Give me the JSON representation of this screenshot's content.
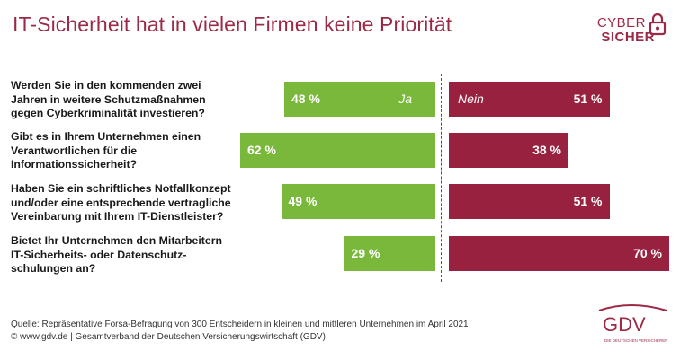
{
  "title": "IT-Sicherheit hat in vielen Firmen keine Priorität",
  "logo": {
    "line1": "CYBER",
    "line2": "SICHER",
    "icon": "lock-icon"
  },
  "colors": {
    "ja": "#79b83b",
    "nein": "#98213f",
    "title": "#9c2a47"
  },
  "chart_data": {
    "type": "bar",
    "orientation": "horizontal diverging",
    "categories": [
      "Werden Sie in den kommenden zwei Jahren in weitere Schutzmaßnahmen gegen Cyberkriminalität investieren?",
      "Gibt es in Ihrem Unternehmen einen Verantwortlichen für die Informationssicherheit?",
      "Haben Sie ein schriftliches Notfallkonzept und/oder eine entsprechende vertragliche Vereinbarung mit Ihrem IT-Dienstleister?",
      "Bietet Ihr Unternehmen den Mitarbeitern IT-Sicherheits- oder Datenschutz-schulungen an?"
    ],
    "series": [
      {
        "name": "Ja",
        "values": [
          48,
          62,
          49,
          29
        ],
        "labels": [
          "48 %",
          "62 %",
          "49 %",
          "29 %"
        ]
      },
      {
        "name": "Nein",
        "values": [
          51,
          38,
          51,
          70
        ],
        "labels": [
          "51 %",
          "38 %",
          "51 %",
          "70 %"
        ]
      }
    ]
  },
  "questions": [
    [
      "Werden Sie in den kommenden zwei",
      "Jahren in weitere Schutzmaßnahmen",
      "gegen Cyberkriminalität investieren?"
    ],
    [
      "Gibt es in Ihrem Unternehmen einen",
      "Verantwortlichen für die",
      "Informationssicherheit?"
    ],
    [
      "Haben Sie ein schriftliches Notfallkonzept",
      "und/oder eine entsprechende vertragliche",
      "Vereinbarung mit Ihrem IT-Dienstleister?"
    ],
    [
      "Bietet Ihr Unternehmen den Mitarbeitern",
      "IT-Sicherheits- oder Datenschutz-",
      "schulungen an?"
    ]
  ],
  "footer": {
    "source": "Quelle: Repräsentative Forsa-Befragung von 300 Entscheidern in kleinen und mittleren Unternehmen im April 2021",
    "copyright": "© www.gdv.de | Gesamtverband der Deutschen Versicherungswirtschaft (GDV)"
  },
  "gdv_logo": {
    "text": "GDV",
    "subtext": "DIE DEUTSCHEN VERSICHERER"
  }
}
